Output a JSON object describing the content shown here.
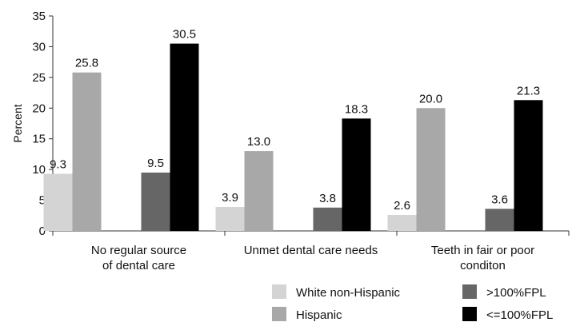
{
  "chart_data": {
    "type": "bar",
    "categories": [
      [
        "No regular source",
        "of dental care"
      ],
      [
        "Unmet dental care needs"
      ],
      [
        "Teeth in fair or poor",
        "conditon"
      ]
    ],
    "series": [
      {
        "name": "White non-Hispanic",
        "values": [
          9.3,
          3.9,
          2.6
        ],
        "color": "#d4d4d4",
        "labels": [
          "9.3",
          "3.9",
          "2.6"
        ]
      },
      {
        "name": "Hispanic",
        "values": [
          25.8,
          13.0,
          20.0
        ],
        "color": "#a8a8a8",
        "labels": [
          "25.8",
          "13.0",
          "20.0"
        ]
      },
      {
        "name": ">100%FPL",
        "values": [
          9.5,
          3.8,
          3.6
        ],
        "color": "#666666",
        "labels": [
          "9.5",
          "3.8",
          "3.6"
        ]
      },
      {
        "name": "<=100%FPL",
        "values": [
          30.5,
          18.3,
          21.3
        ],
        "color": "#000000",
        "labels": [
          "30.5",
          "18.3",
          "21.3"
        ]
      }
    ],
    "ylabel": "Percent",
    "ylim": [
      0,
      35
    ],
    "yticks": [
      0,
      5,
      10,
      15,
      20,
      25,
      30,
      35
    ],
    "grid": false,
    "legend": "bottom-right"
  }
}
